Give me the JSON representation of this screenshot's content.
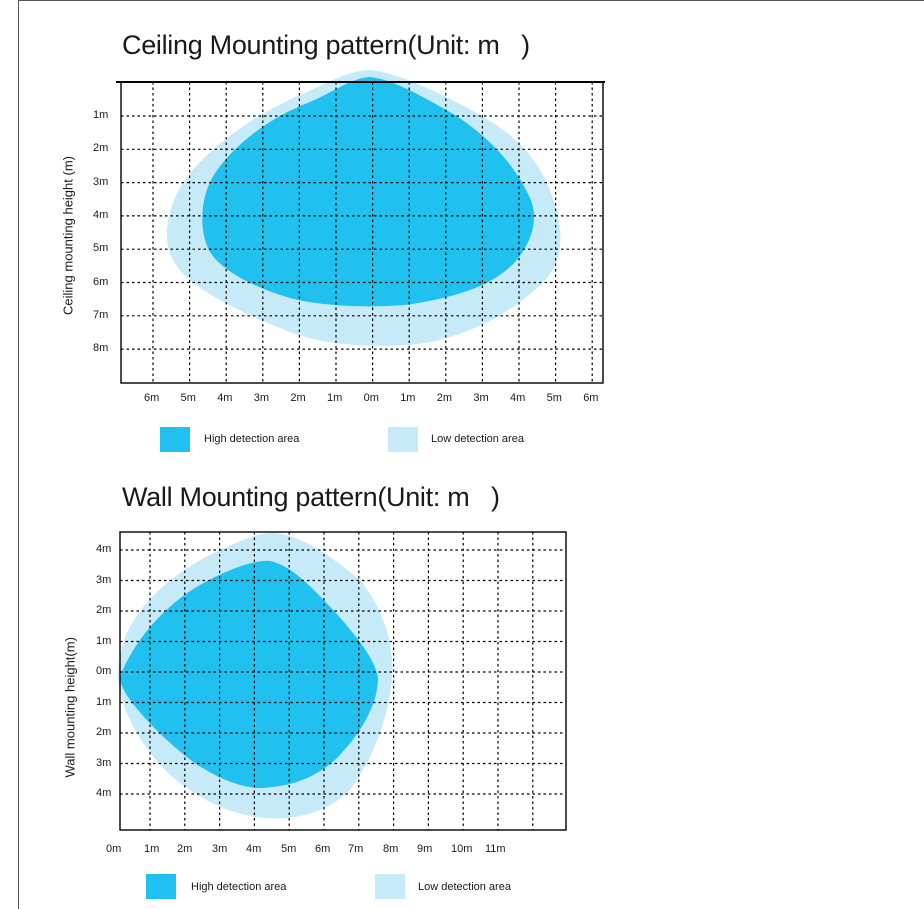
{
  "colors": {
    "high": "#21c1ef",
    "low": "#c6eaf8",
    "grid": "#000000"
  },
  "ceiling": {
    "title": "Ceiling Mounting pattern(Unit: m   )",
    "ylabel": "Ceiling mounting height (m)",
    "y_ticks": [
      "1m",
      "2m",
      "3m",
      "4m",
      "5m",
      "6m",
      "7m",
      "8m"
    ],
    "x_ticks": [
      "6m",
      "5m",
      "4m",
      "3m",
      "2m",
      "1m",
      "0m",
      "1m",
      "2m",
      "3m",
      "4m",
      "5m",
      "6m"
    ],
    "legend": {
      "high": "High detection area",
      "low": "Low detection area"
    }
  },
  "wall": {
    "title": "Wall Mounting pattern(Unit: m   )",
    "ylabel": "Wall mounting height(m)",
    "y_ticks": [
      "4m",
      "3m",
      "2m",
      "1m",
      "0m",
      "1m",
      "2m",
      "3m",
      "4m"
    ],
    "x_ticks": [
      "0m",
      "1m",
      "2m",
      "3m",
      "4m",
      "5m",
      "6m",
      "7m",
      "8m",
      "9m",
      "10m",
      "11m"
    ],
    "legend": {
      "high": "High detection area",
      "low": "Low detection area"
    }
  }
}
